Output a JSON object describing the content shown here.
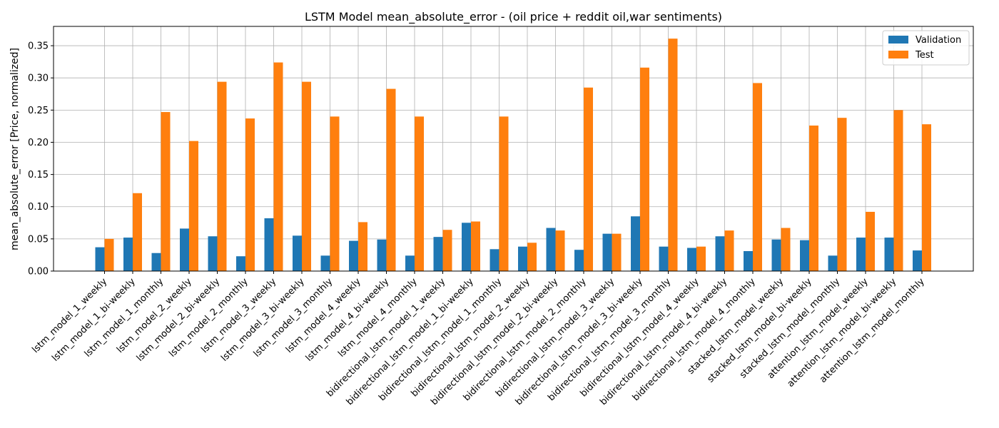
{
  "chart_data": {
    "type": "bar",
    "title": "LSTM Model mean_absolute_error - (oil price + reddit oil,war  sentiments)",
    "xlabel": "",
    "ylabel": "mean_absolute_error [Price, normalized]",
    "ylim": [
      0,
      0.38
    ],
    "yticks": [
      0.0,
      0.05,
      0.1,
      0.15,
      0.2,
      0.25,
      0.3,
      0.35
    ],
    "ytick_labels": [
      "0.00",
      "0.05",
      "0.10",
      "0.15",
      "0.20",
      "0.25",
      "0.30",
      "0.35"
    ],
    "grid": true,
    "legend_position": "top-right",
    "categories": [
      "lstm_model_1_weekly",
      "lstm_model_1_bi-weekly",
      "lstm_model_1_monthly",
      "lstm_model_2_weekly",
      "lstm_model_2_bi-weekly",
      "lstm_model_2_monthly",
      "lstm_model_3_weekly",
      "lstm_model_3_bi-weekly",
      "lstm_model_3_monthly",
      "lstm_model_4_weekly",
      "lstm_model_4_bi-weekly",
      "lstm_model_4_monthly",
      "bidirectional_lstm_model_1_weekly",
      "bidirectional_lstm_model_1_bi-weekly",
      "bidirectional_lstm_model_1_monthly",
      "bidirectional_lstm_model_2_weekly",
      "bidirectional_lstm_model_2_bi-weekly",
      "bidirectional_lstm_model_2_monthly",
      "bidirectional_lstm_model_3_weekly",
      "bidirectional_lstm_model_3_bi-weekly",
      "bidirectional_lstm_model_3_monthly",
      "bidirectional_lstm_model_4_weekly",
      "bidirectional_lstm_model_4_bi-weekly",
      "bidirectional_lstm_model_4_monthly",
      "stacked_lstm_model_weekly",
      "stacked_lstm_model_bi-weekly",
      "stacked_lstm_model_monthly",
      "attention_lstm_model_weekly",
      "attention_lstm_model_bi-weekly",
      "attention_lstm_model_monthly"
    ],
    "series": [
      {
        "name": "Validation",
        "color": "#1f77b4",
        "values": [
          0.037,
          0.052,
          0.028,
          0.066,
          0.054,
          0.023,
          0.082,
          0.055,
          0.024,
          0.047,
          0.049,
          0.024,
          0.053,
          0.075,
          0.034,
          0.038,
          0.067,
          0.033,
          0.058,
          0.085,
          0.038,
          0.036,
          0.054,
          0.031,
          0.049,
          0.048,
          0.024,
          0.052,
          0.052,
          0.032
        ]
      },
      {
        "name": "Test",
        "color": "#ff7f0e",
        "values": [
          0.05,
          0.121,
          0.247,
          0.202,
          0.294,
          0.237,
          0.324,
          0.294,
          0.24,
          0.076,
          0.283,
          0.24,
          0.064,
          0.077,
          0.24,
          0.044,
          0.063,
          0.285,
          0.058,
          0.316,
          0.361,
          0.038,
          0.063,
          0.292,
          0.067,
          0.226,
          0.238,
          0.092,
          0.25,
          0.228
        ]
      }
    ]
  }
}
